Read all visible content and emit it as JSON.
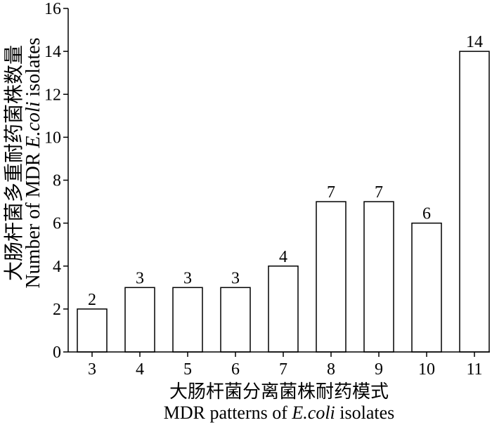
{
  "chart_data": {
    "type": "bar",
    "categories": [
      "3",
      "4",
      "5",
      "6",
      "7",
      "8",
      "9",
      "10",
      "11"
    ],
    "values": [
      2,
      3,
      3,
      3,
      4,
      7,
      7,
      6,
      14
    ],
    "data_labels": [
      "2",
      "3",
      "3",
      "3",
      "4",
      "7",
      "7",
      "6",
      "14"
    ],
    "xlabel": {
      "zh": "大肠杆菌分离菌株耐药模式",
      "en_prefix": "MDR patterns of ",
      "en_italic": "E.coli",
      "en_suffix": " isolates"
    },
    "ylabel": {
      "zh": "大肠杆菌多重耐药菌株数量",
      "en_prefix": "Number of MDR ",
      "en_italic": "E.coli",
      "en_suffix": " isolates"
    },
    "ylim": [
      0,
      16
    ],
    "yticks": [
      0,
      2,
      4,
      6,
      8,
      10,
      12,
      14,
      16
    ],
    "grid": false,
    "legend": "none",
    "colors": {
      "bar_fill": "#ffffff",
      "bar_stroke": "#000000",
      "axis": "#000000"
    }
  }
}
